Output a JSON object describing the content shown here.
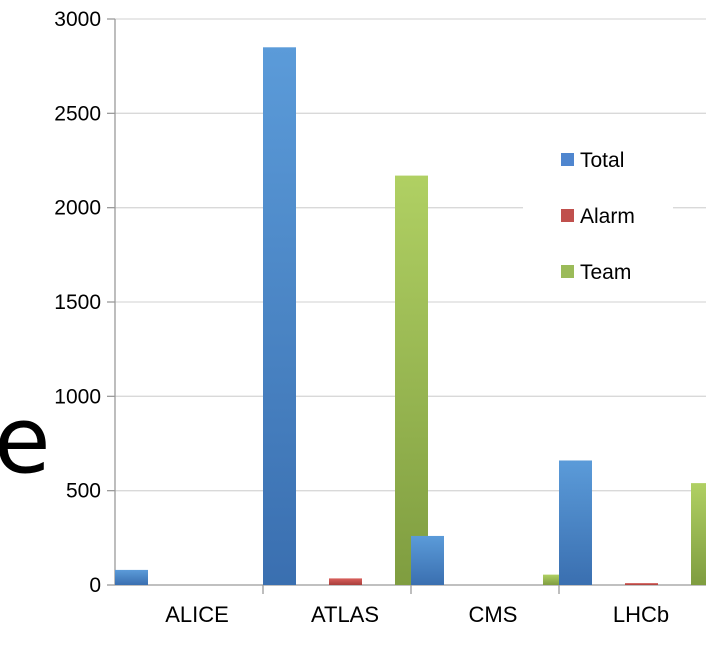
{
  "edge_text": "e",
  "chart_data": {
    "type": "bar",
    "categories": [
      "ALICE",
      "ATLAS",
      "CMS",
      "LHCb"
    ],
    "series": [
      {
        "name": "Total",
        "values": [
          80,
          2850,
          260,
          660
        ],
        "color": "#4f86cf"
      },
      {
        "name": "Alarm",
        "values": [
          0,
          35,
          0,
          10
        ],
        "color": "#c0504d"
      },
      {
        "name": "Team",
        "values": [
          0,
          2170,
          55,
          540
        ],
        "color": "#9bbb59"
      }
    ],
    "ylim": [
      0,
      3000
    ],
    "yticks": [
      0,
      500,
      1000,
      1500,
      2000,
      2500,
      3000
    ],
    "grid": true,
    "legend_position": "right",
    "title": "",
    "xlabel": "",
    "ylabel": ""
  }
}
